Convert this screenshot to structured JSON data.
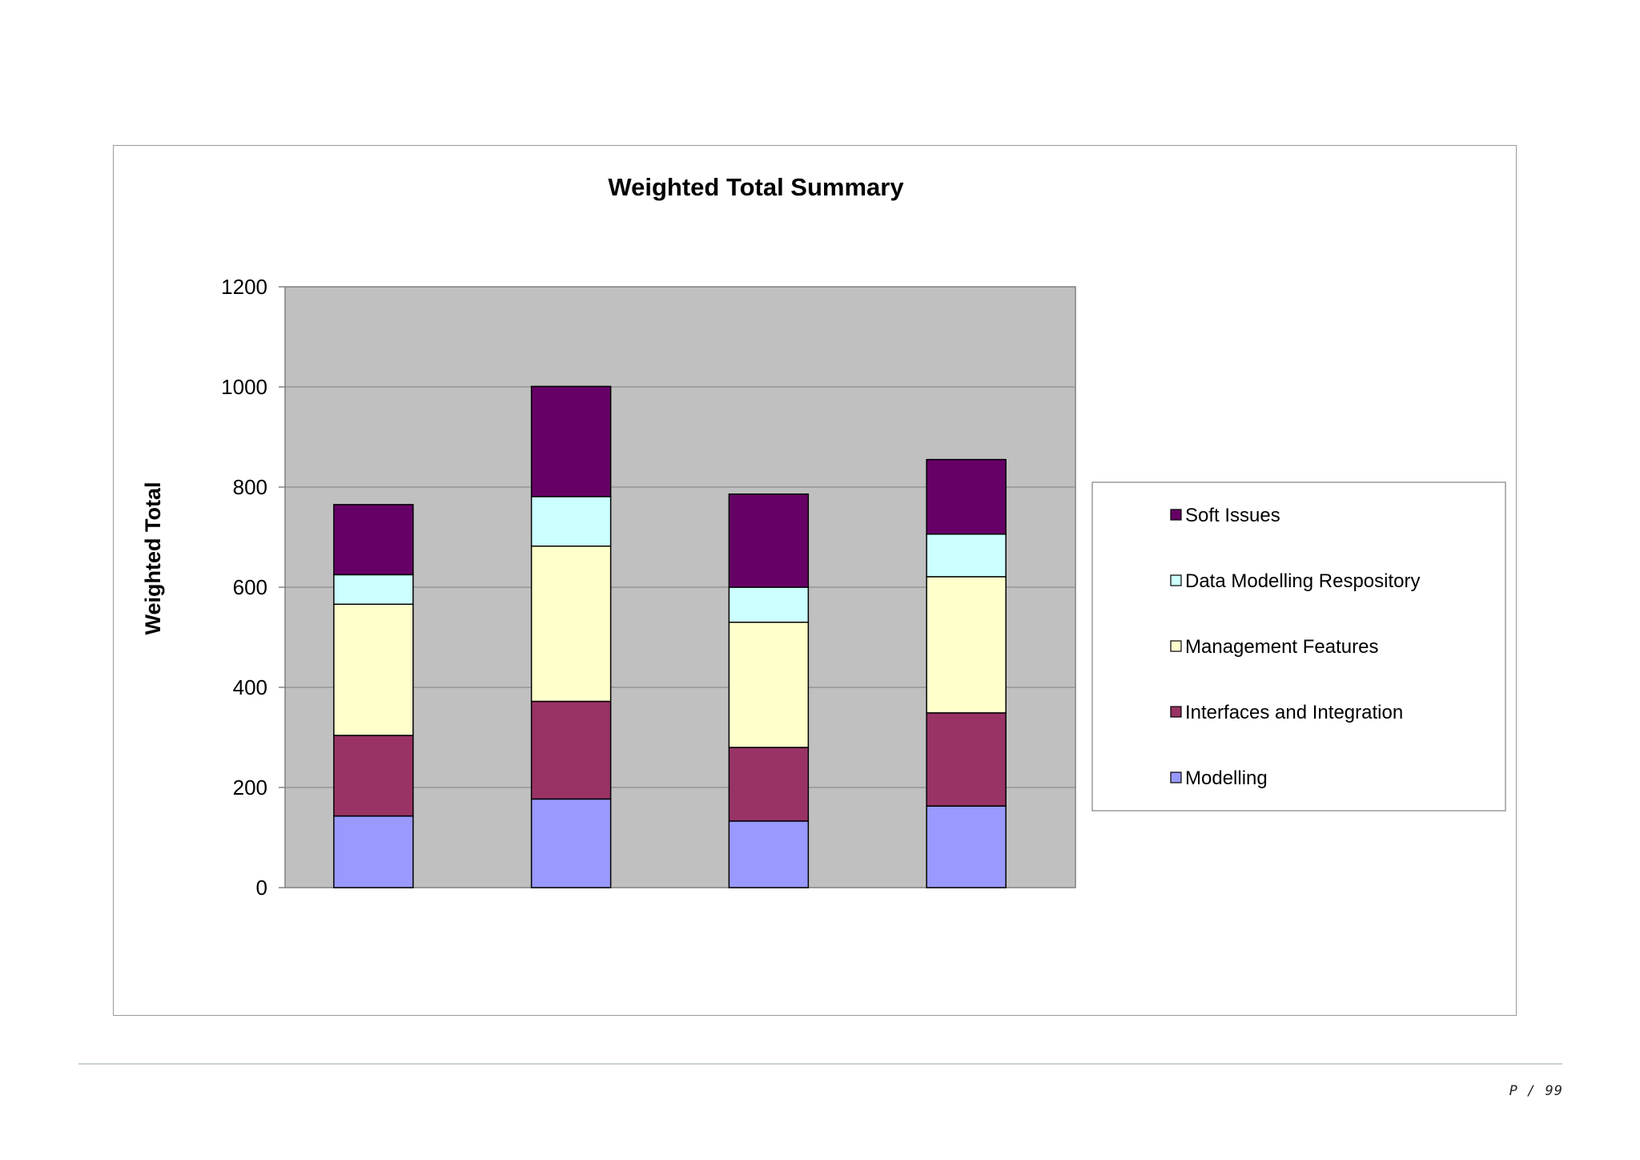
{
  "page": {
    "page_number": "P / 99"
  },
  "chart_data": {
    "type": "bar",
    "stacked": true,
    "title": "Weighted Total Summary",
    "xlabel": "",
    "ylabel": "Weighted Total",
    "ylim": [
      0,
      1200
    ],
    "yticks": [
      0,
      200,
      400,
      600,
      800,
      1000,
      1200
    ],
    "grid": true,
    "legend_position": "right",
    "plot_background": "#c0c0c0",
    "categories": [
      "",
      "",
      "",
      ""
    ],
    "series": [
      {
        "name": "Modelling",
        "color": "#9999ff",
        "values": [
          143,
          177,
          133,
          163
        ]
      },
      {
        "name": "Interfaces and Integration",
        "color": "#993366",
        "values": [
          161,
          195,
          147,
          186
        ]
      },
      {
        "name": "Management Features",
        "color": "#ffffcc",
        "values": [
          262,
          310,
          250,
          272
        ]
      },
      {
        "name": "Data Modelling Respository",
        "color": "#ccffff",
        "values": [
          59,
          99,
          70,
          85
        ]
      },
      {
        "name": "Soft Issues",
        "color": "#660066",
        "values": [
          140,
          220,
          186,
          149
        ]
      }
    ]
  }
}
